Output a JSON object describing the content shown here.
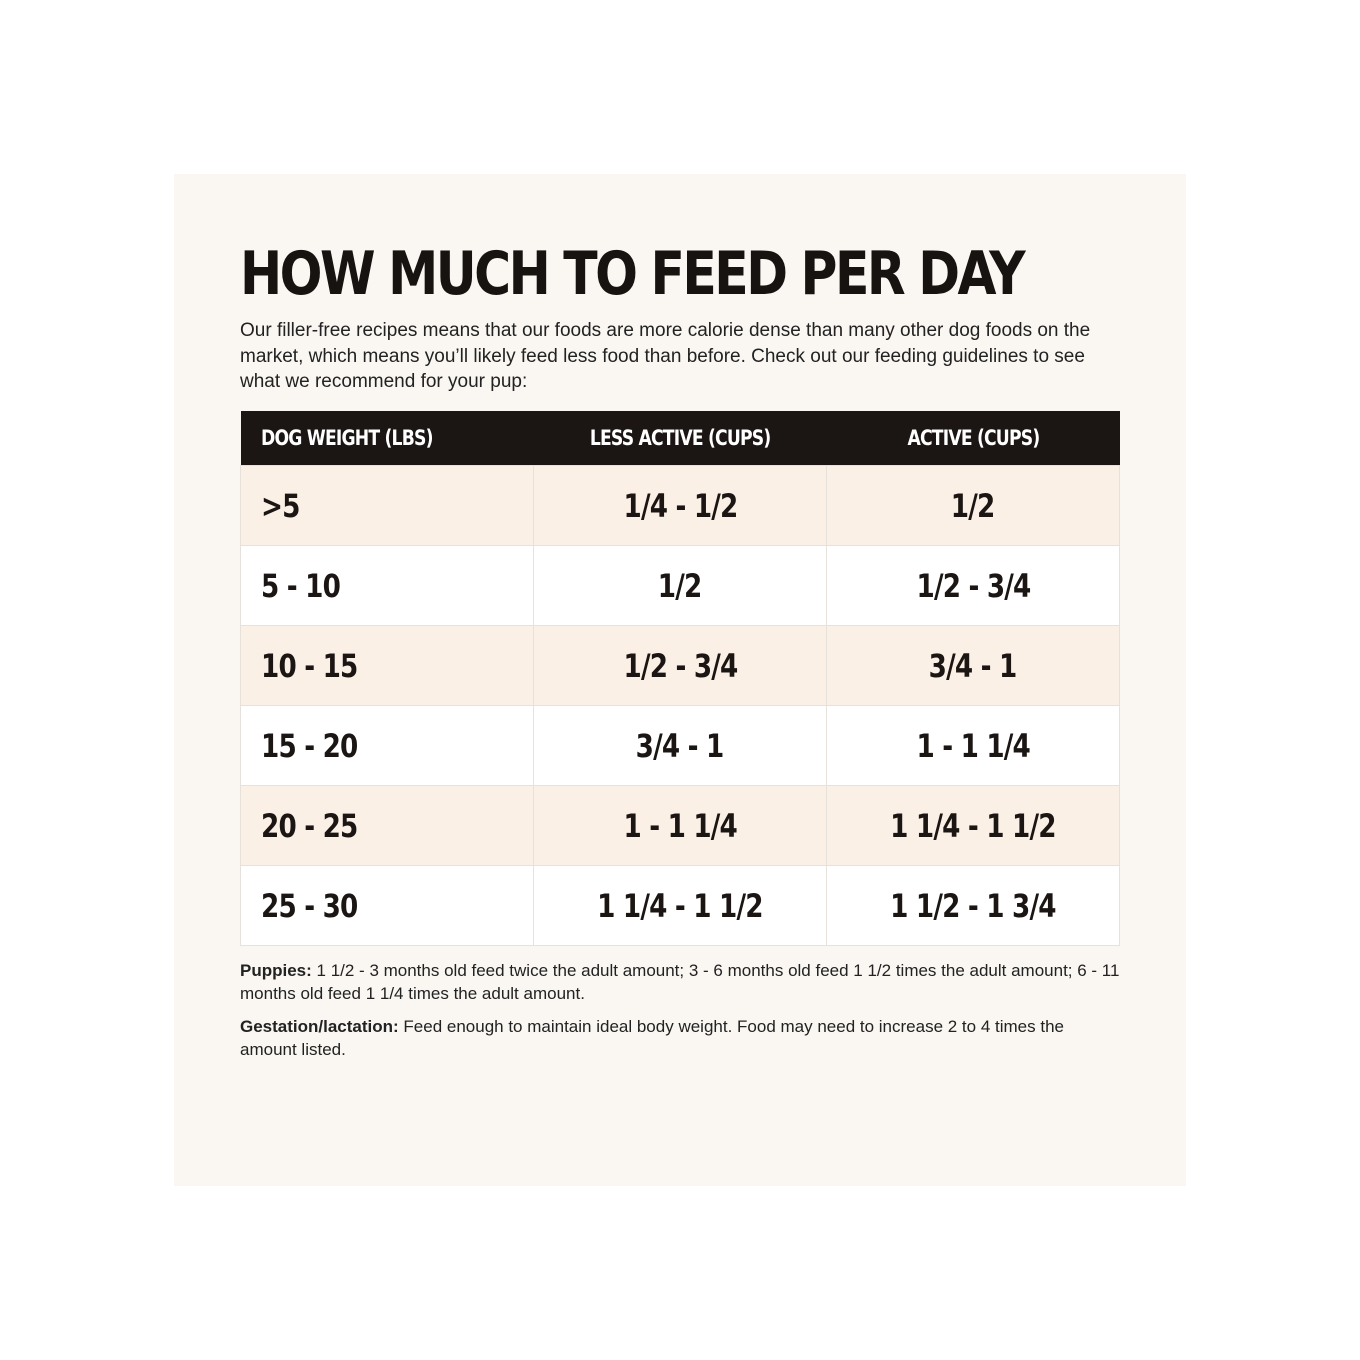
{
  "title": "HOW MUCH TO FEED PER DAY",
  "intro": "Our filler-free recipes means that our foods are more calorie dense than many other dog foods on the market, which means you’ll likely feed less food than before. Check out our feeding guidelines to see what we recommend for your pup:",
  "table": {
    "headers": [
      "DOG WEIGHT (LBS)",
      "LESS ACTIVE (CUPS)",
      "ACTIVE (CUPS)"
    ],
    "rows": [
      [
        ">5",
        "1/4 - 1/2",
        "1/2"
      ],
      [
        "5 - 10",
        "1/2",
        "1/2 - 3/4"
      ],
      [
        "10 - 15",
        "1/2 - 3/4",
        "3/4 - 1"
      ],
      [
        "15 - 20",
        "3/4 - 1",
        "1 - 1 1/4"
      ],
      [
        "20 - 25",
        "1 - 1 1/4",
        "1 1/4 - 1 1/2"
      ],
      [
        "25 - 30",
        "1 1/4 - 1 1/2",
        "1 1/2 - 1 3/4"
      ]
    ]
  },
  "notes": {
    "puppies_label": "Puppies:",
    "puppies_text": " 1 1/2 - 3 months old feed twice the adult amount; 3 - 6 months old feed 1 1/2 times the adult amount; 6 - 11 months old feed 1 1/4 times the adult amount.",
    "gestation_label": "Gestation/lactation:",
    "gestation_text": " Feed enough to maintain ideal body weight. Food may need to increase 2 to 4 times the amount listed."
  }
}
